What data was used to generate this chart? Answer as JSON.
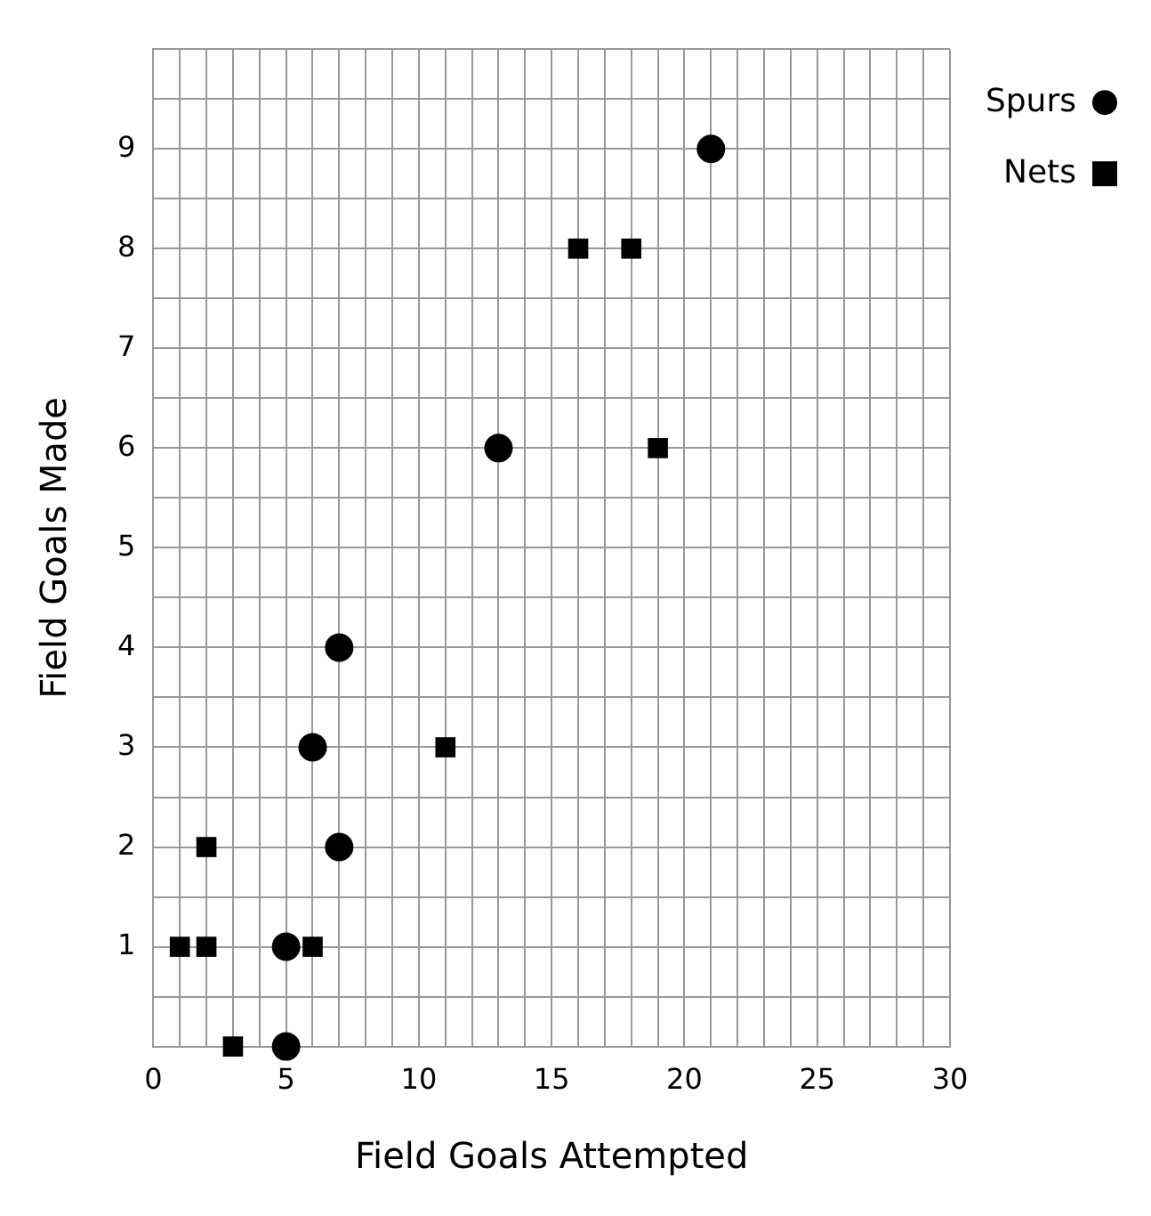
{
  "chart_data": {
    "type": "scatter",
    "xlabel": "Field Goals Attempted",
    "ylabel": "Field Goals Made",
    "xlim": [
      0,
      30
    ],
    "ylim": [
      0,
      10
    ],
    "xticks": [
      {
        "value": 0,
        "label": "0"
      },
      {
        "value": 1,
        "label": null
      },
      {
        "value": 2,
        "label": null
      },
      {
        "value": 3,
        "label": null
      },
      {
        "value": 4,
        "label": null
      },
      5,
      {
        "value": 6,
        "label": null
      },
      {
        "value": 7,
        "label": null
      },
      {
        "value": 8,
        "label": null
      },
      {
        "value": 9,
        "label": null
      },
      10,
      {
        "value": 11,
        "label": null
      },
      {
        "value": 12,
        "label": null
      },
      {
        "value": 13,
        "label": null
      },
      {
        "value": 14,
        "label": null
      },
      15,
      {
        "value": 16,
        "label": null
      },
      {
        "value": 17,
        "label": null
      },
      {
        "value": 18,
        "label": null
      },
      {
        "value": 19,
        "label": null
      },
      20,
      {
        "value": 21,
        "label": null
      },
      {
        "value": 22,
        "label": null
      },
      {
        "value": 23,
        "label": null
      },
      {
        "value": 24,
        "label": null
      },
      25,
      {
        "value": 26,
        "label": null
      },
      {
        "value": 27,
        "label": null
      },
      {
        "value": 28,
        "label": null
      },
      {
        "value": 29,
        "label": null
      },
      30
    ],
    "yticks": [
      {
        "value": 0,
        "label": null
      },
      {
        "value": 0.5,
        "label": null
      },
      1,
      {
        "value": 1.5,
        "label": null
      },
      2,
      {
        "value": 2.5,
        "label": null
      },
      3,
      {
        "value": 3.5,
        "label": null
      },
      4,
      {
        "value": 4.5,
        "label": null
      },
      5,
      {
        "value": 5.5,
        "label": null
      },
      6,
      {
        "value": 6.5,
        "label": null
      },
      7,
      {
        "value": 7.5,
        "label": null
      },
      8,
      {
        "value": 8.5,
        "label": null
      },
      9,
      {
        "value": 9.5,
        "label": null
      },
      {
        "value": 10,
        "label": null
      }
    ],
    "grid": true,
    "legend": "top right",
    "series": [
      {
        "name": "Spurs",
        "color": "#000000",
        "marker": "circle",
        "x": [
          21,
          13,
          7,
          6,
          7,
          5,
          5
        ],
        "values": [
          9,
          6,
          4,
          3,
          2,
          1,
          0
        ]
      },
      {
        "name": "Nets",
        "color": "#000000",
        "marker": "square",
        "x": [
          16,
          18,
          19,
          11,
          2,
          1,
          2,
          6,
          3
        ],
        "values": [
          8,
          8,
          6,
          3,
          2,
          1,
          1,
          1,
          0
        ]
      }
    ]
  }
}
